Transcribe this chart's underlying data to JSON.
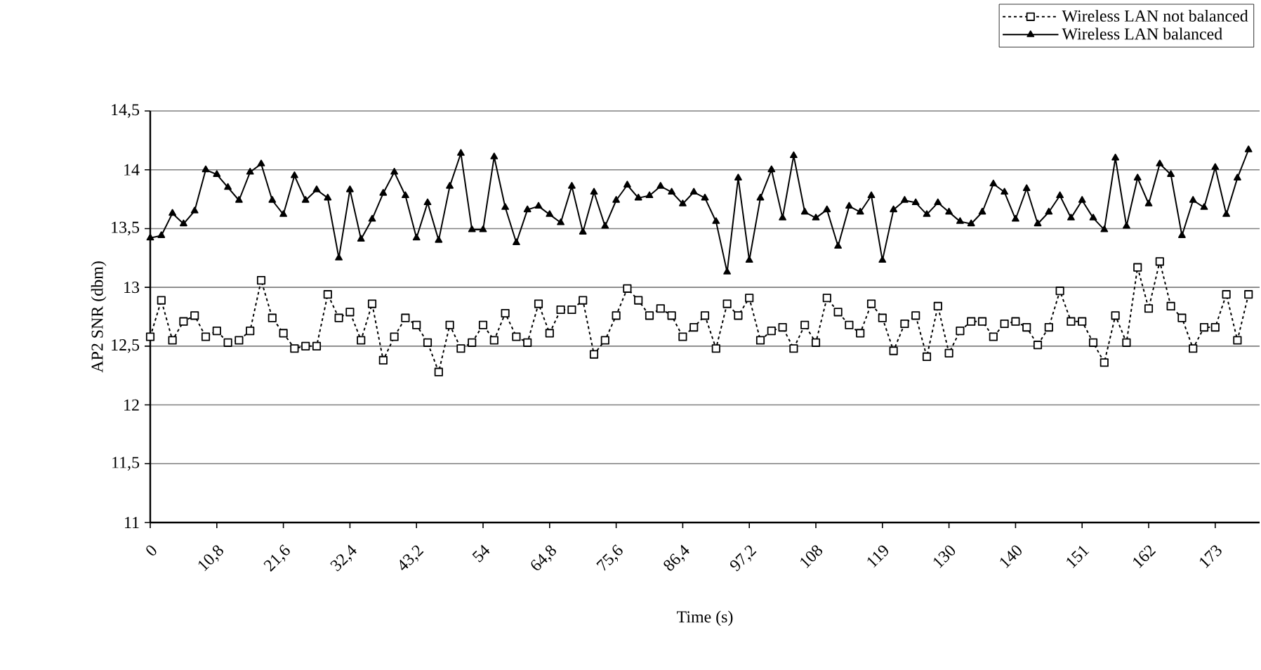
{
  "chart_data": {
    "type": "line",
    "xlabel": "Time (s)",
    "ylabel": "AP2 SNR (dbm)",
    "x": [
      0,
      1.8,
      3.6,
      5.4,
      7.2,
      9,
      10.8,
      12.6,
      14.4,
      16.2,
      18,
      19.8,
      21.6,
      23.4,
      25.2,
      27,
      28.8,
      30.6,
      32.4,
      34.2,
      36,
      37.8,
      39.6,
      41.4,
      43.2,
      45,
      46.8,
      48.6,
      50.4,
      52.2,
      54,
      55.8,
      57.6,
      59.4,
      61.2,
      63,
      64.8,
      66.6,
      68.4,
      70.2,
      72,
      73.8,
      75.6,
      77.4,
      79.2,
      81,
      82.8,
      84.6,
      86.4,
      88.2,
      90,
      91.8,
      93.6,
      95.4,
      97.2,
      99,
      100.8,
      102.6,
      104.4,
      106.2,
      108,
      109.8,
      111.6,
      113.4,
      115.2,
      117,
      118.8,
      120.6,
      122.4,
      124.2,
      126,
      127.8,
      129.6,
      131.4,
      133.2,
      135,
      136.8,
      138.6,
      140.4,
      142.2,
      144,
      145.8,
      147.6,
      149.4,
      151.2,
      153,
      154.8,
      156.6,
      158.4,
      160.2,
      162,
      163.8,
      165.6,
      167.4,
      169.2,
      171,
      172.8,
      174.6,
      176.4,
      178.2
    ],
    "series": [
      {
        "name": "Wireless LAN not balanced",
        "color": "#000000",
        "marker": "square",
        "line_style": "dotted",
        "values": [
          12.58,
          12.89,
          12.55,
          12.71,
          12.76,
          12.58,
          12.63,
          12.53,
          12.55,
          12.63,
          13.06,
          12.74,
          12.61,
          12.48,
          12.5,
          12.5,
          12.94,
          12.74,
          12.79,
          12.55,
          12.86,
          12.38,
          12.58,
          12.74,
          12.68,
          12.53,
          12.28,
          12.68,
          12.48,
          12.53,
          12.68,
          12.55,
          12.78,
          12.58,
          12.53,
          12.86,
          12.61,
          12.81,
          12.81,
          12.89,
          12.43,
          12.55,
          12.76,
          12.99,
          12.89,
          12.76,
          12.82,
          12.76,
          12.58,
          12.66,
          12.76,
          12.48,
          12.86,
          12.76,
          12.91,
          12.55,
          12.63,
          12.66,
          12.48,
          12.68,
          12.53,
          12.91,
          12.79,
          12.68,
          12.61,
          12.86,
          12.74,
          12.46,
          12.69,
          12.76,
          12.41,
          12.84,
          12.44,
          12.63,
          12.71,
          12.71,
          12.58,
          12.69,
          12.71,
          12.66,
          12.51,
          12.66,
          12.97,
          12.71,
          12.71,
          12.53,
          12.36,
          12.76,
          12.53,
          13.17,
          12.82,
          13.22,
          12.84,
          12.74,
          12.48,
          12.66,
          12.66,
          12.94,
          12.55,
          12.94
        ]
      },
      {
        "name": "Wireless LAN balanced",
        "color": "#000000",
        "marker": "triangle",
        "line_style": "solid",
        "values": [
          13.42,
          13.44,
          13.63,
          13.54,
          13.65,
          14.0,
          13.96,
          13.85,
          13.74,
          13.98,
          14.05,
          13.74,
          13.62,
          13.95,
          13.74,
          13.83,
          13.76,
          13.25,
          13.83,
          13.41,
          13.58,
          13.8,
          13.98,
          13.78,
          13.42,
          13.72,
          13.4,
          13.86,
          14.14,
          13.49,
          13.49,
          14.11,
          13.68,
          13.38,
          13.66,
          13.69,
          13.62,
          13.55,
          13.86,
          13.47,
          13.81,
          13.52,
          13.74,
          13.87,
          13.76,
          13.78,
          13.86,
          13.81,
          13.71,
          13.81,
          13.76,
          13.56,
          13.13,
          13.93,
          13.23,
          13.76,
          14.0,
          13.59,
          14.12,
          13.64,
          13.59,
          13.66,
          13.35,
          13.69,
          13.64,
          13.78,
          13.23,
          13.66,
          13.74,
          13.72,
          13.62,
          13.72,
          13.64,
          13.56,
          13.54,
          13.64,
          13.88,
          13.81,
          13.58,
          13.84,
          13.54,
          13.64,
          13.78,
          13.59,
          13.74,
          13.59,
          13.49,
          14.1,
          13.52,
          13.93,
          13.71,
          14.05,
          13.96,
          13.44,
          13.74,
          13.68,
          14.02,
          13.62,
          13.93,
          14.17
        ]
      }
    ],
    "xlim": [
      0,
      180
    ],
    "xticks": [
      0,
      {
        "value": 10.8,
        "label": "10,8"
      },
      {
        "value": 21.6,
        "label": "21,6"
      },
      {
        "value": 32.4,
        "label": "32,4"
      },
      {
        "value": 43.2,
        "label": "43,2"
      },
      54,
      {
        "value": 64.8,
        "label": "64,8"
      },
      {
        "value": 75.6,
        "label": "75,6"
      },
      {
        "value": 86.4,
        "label": "86,4"
      },
      {
        "value": 97.2,
        "label": "97,2"
      },
      108,
      {
        "value": 118.8,
        "label": "119"
      },
      {
        "value": 129.6,
        "label": "130"
      },
      {
        "value": 140.4,
        "label": "140"
      },
      {
        "value": 151.2,
        "label": "151"
      },
      162,
      {
        "value": 172.8,
        "label": "173"
      }
    ],
    "ylim": [
      11,
      14.5
    ],
    "yticks": [
      11,
      {
        "value": 11.5,
        "label": "11,5"
      },
      12,
      {
        "value": 12.5,
        "label": "12,5"
      },
      13,
      {
        "value": 13.5,
        "label": "13,5"
      },
      14,
      {
        "value": 14.5,
        "label": "14,5"
      }
    ],
    "grid": "y",
    "legend": "top right"
  }
}
